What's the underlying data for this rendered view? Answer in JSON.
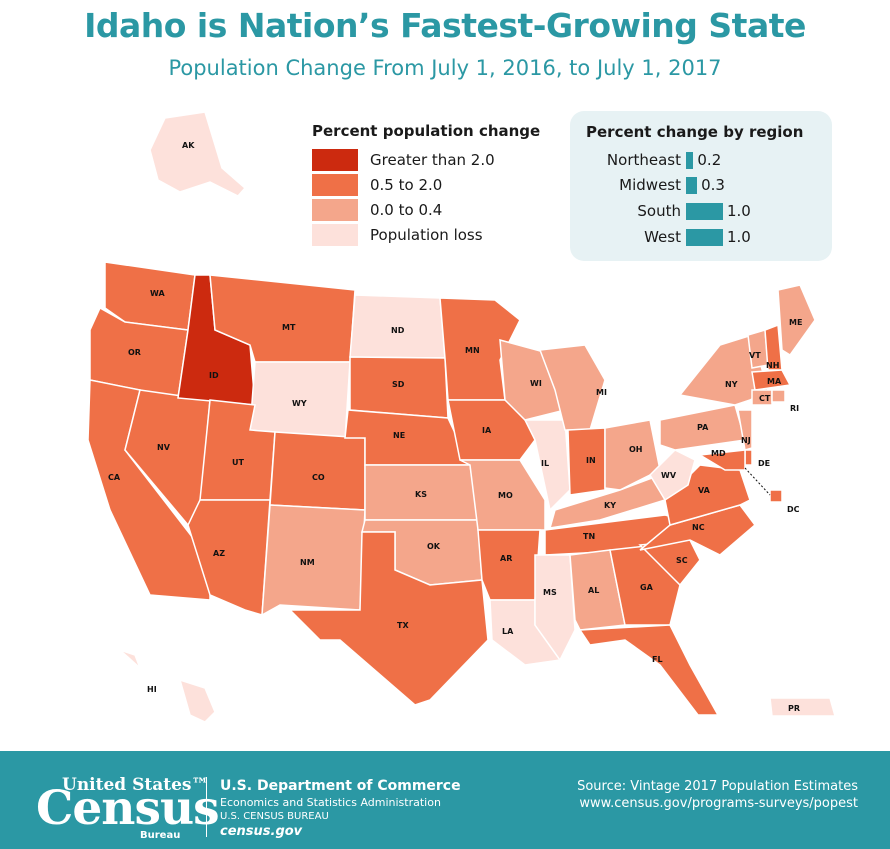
{
  "header": {
    "title": "Idaho is Nation’s Fastest-Growing State",
    "subtitle": "Population Change From July 1, 2016, to July 1, 2017"
  },
  "legend": {
    "title": "Percent population change",
    "items": [
      {
        "label": "Greater than 2.0",
        "color": "#cc2a0f"
      },
      {
        "label": "0.5 to 2.0",
        "color": "#ef7047"
      },
      {
        "label": "0.0 to 0.4",
        "color": "#f4a68b"
      },
      {
        "label": "Population loss",
        "color": "#fde1db"
      }
    ]
  },
  "regions": {
    "title": "Percent change by region",
    "items": [
      {
        "name": "Northeast",
        "value": 0.2,
        "label": "0.2"
      },
      {
        "name": "Midwest",
        "value": 0.3,
        "label": "0.3"
      },
      {
        "name": "South",
        "value": 1.0,
        "label": "1.0"
      },
      {
        "name": "West",
        "value": 1.0,
        "label": "1.0"
      }
    ],
    "bar_color": "#2b98a4"
  },
  "map": {
    "states": {
      "AK": "Population loss",
      "HI": "Population loss",
      "PR": "Population loss",
      "WA": "0.5 to 2.0",
      "OR": "0.5 to 2.0",
      "CA": "0.5 to 2.0",
      "NV": "0.5 to 2.0",
      "ID": "Greater than 2.0",
      "MT": "0.5 to 2.0",
      "WY": "Population loss",
      "UT": "0.5 to 2.0",
      "AZ": "0.5 to 2.0",
      "CO": "0.5 to 2.0",
      "NM": "0.0 to 0.4",
      "ND": "Population loss",
      "SD": "0.5 to 2.0",
      "NE": "0.5 to 2.0",
      "KS": "0.0 to 0.4",
      "OK": "0.0 to 0.4",
      "TX": "0.5 to 2.0",
      "MN": "0.5 to 2.0",
      "IA": "0.5 to 2.0",
      "MO": "0.0 to 0.4",
      "AR": "0.5 to 2.0",
      "LA": "Population loss",
      "WI": "0.0 to 0.4",
      "IL": "Population loss",
      "MI": "0.0 to 0.4",
      "IN": "0.5 to 2.0",
      "OH": "0.0 to 0.4",
      "KY": "0.0 to 0.4",
      "TN": "0.5 to 2.0",
      "MS": "Population loss",
      "AL": "0.0 to 0.4",
      "GA": "0.5 to 2.0",
      "FL": "0.5 to 2.0",
      "SC": "0.5 to 2.0",
      "NC": "0.5 to 2.0",
      "VA": "0.5 to 2.0",
      "WV": "Population loss",
      "PA": "0.0 to 0.4",
      "NY": "0.0 to 0.4",
      "VT": "0.0 to 0.4",
      "NH": "0.5 to 2.0",
      "ME": "0.0 to 0.4",
      "MA": "0.5 to 2.0",
      "RI": "0.0 to 0.4",
      "CT": "0.0 to 0.4",
      "NJ": "0.0 to 0.4",
      "DE": "0.5 to 2.0",
      "MD": "0.5 to 2.0",
      "DC": "0.5 to 2.0"
    }
  },
  "footer": {
    "logo_top": "United States™",
    "logo_main": "Census",
    "logo_sub": "Bureau",
    "dept_line1": "U.S. Department of Commerce",
    "dept_line2": "Economics and Statistics Administration",
    "dept_line3": "U.S. CENSUS BUREAU",
    "dept_line4": "census.gov",
    "source_line1": "Source: Vintage 2017 Population Estimates",
    "source_line2": "www.census.gov/programs-surveys/popest"
  }
}
